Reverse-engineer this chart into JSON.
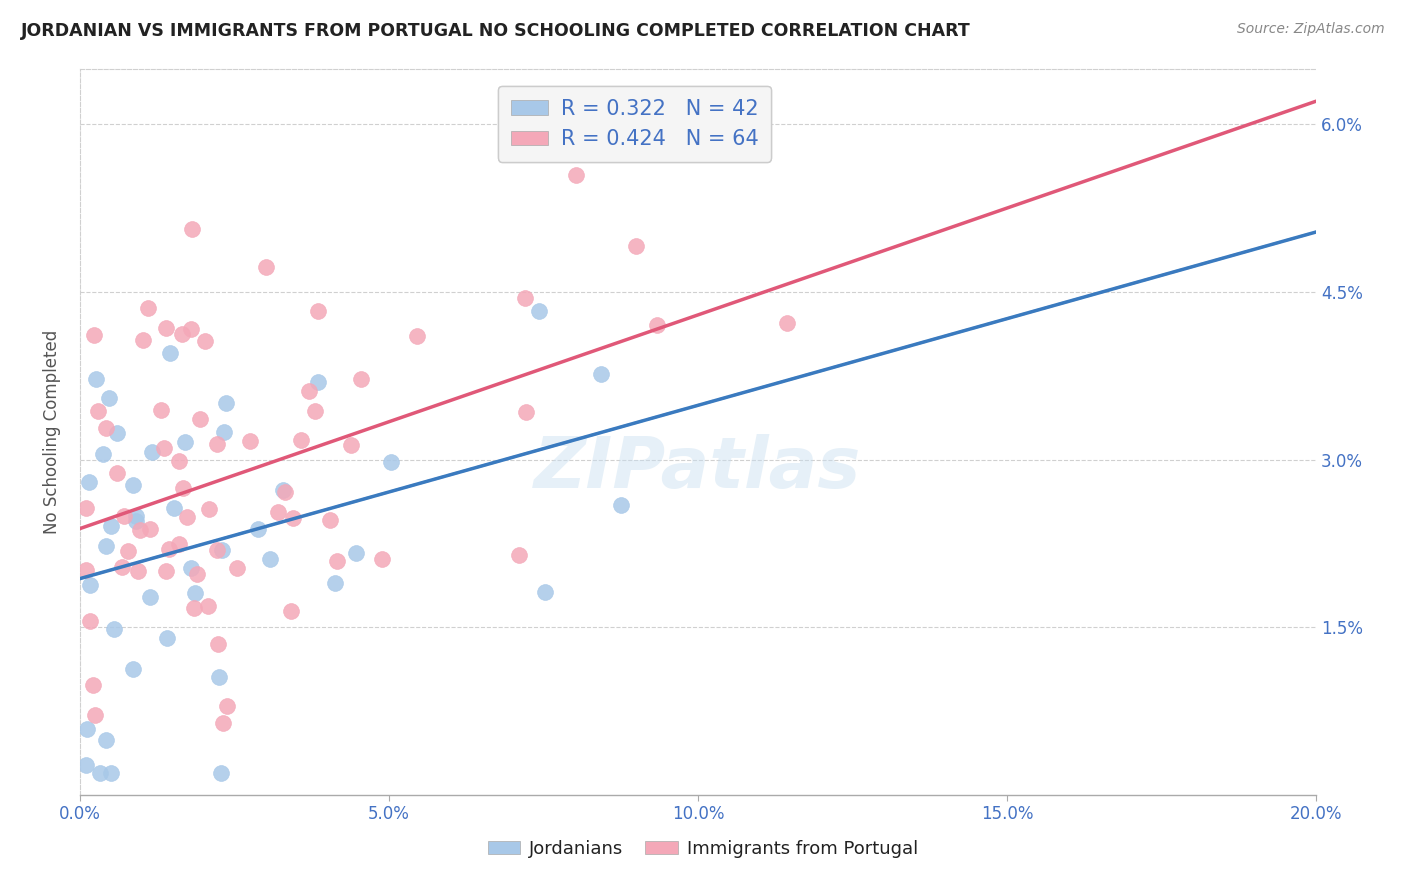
{
  "title": "JORDANIAN VS IMMIGRANTS FROM PORTUGAL NO SCHOOLING COMPLETED CORRELATION CHART",
  "source": "Source: ZipAtlas.com",
  "ylabel": "No Schooling Completed",
  "xlabel_ticks": [
    "0.0%",
    "5.0%",
    "10.0%",
    "15.0%",
    "20.0%"
  ],
  "ylabel_ticks": [
    "1.5%",
    "3.0%",
    "4.5%",
    "6.0%"
  ],
  "xlim": [
    0.0,
    0.2
  ],
  "ylim": [
    0.0,
    0.065
  ],
  "jordanians_R": 0.322,
  "jordanians_N": 42,
  "portugal_R": 0.424,
  "portugal_N": 64,
  "blue_color": "#a8c8e8",
  "pink_color": "#f4a8b8",
  "blue_line_color": "#3a7abf",
  "pink_line_color": "#e05878",
  "blue_dash_color": "#a0c0e0",
  "watermark": "ZIPatlas",
  "background_color": "#ffffff",
  "grid_color": "#d0d0d0",
  "legend_box_color": "#f5f5f5",
  "title_color": "#222222",
  "axis_label_color": "#4472c4",
  "legend_text_color": "#4472c4",
  "bottom_legend_text_color": "#222222",
  "jordanians_seed": 42,
  "portugal_seed": 7
}
